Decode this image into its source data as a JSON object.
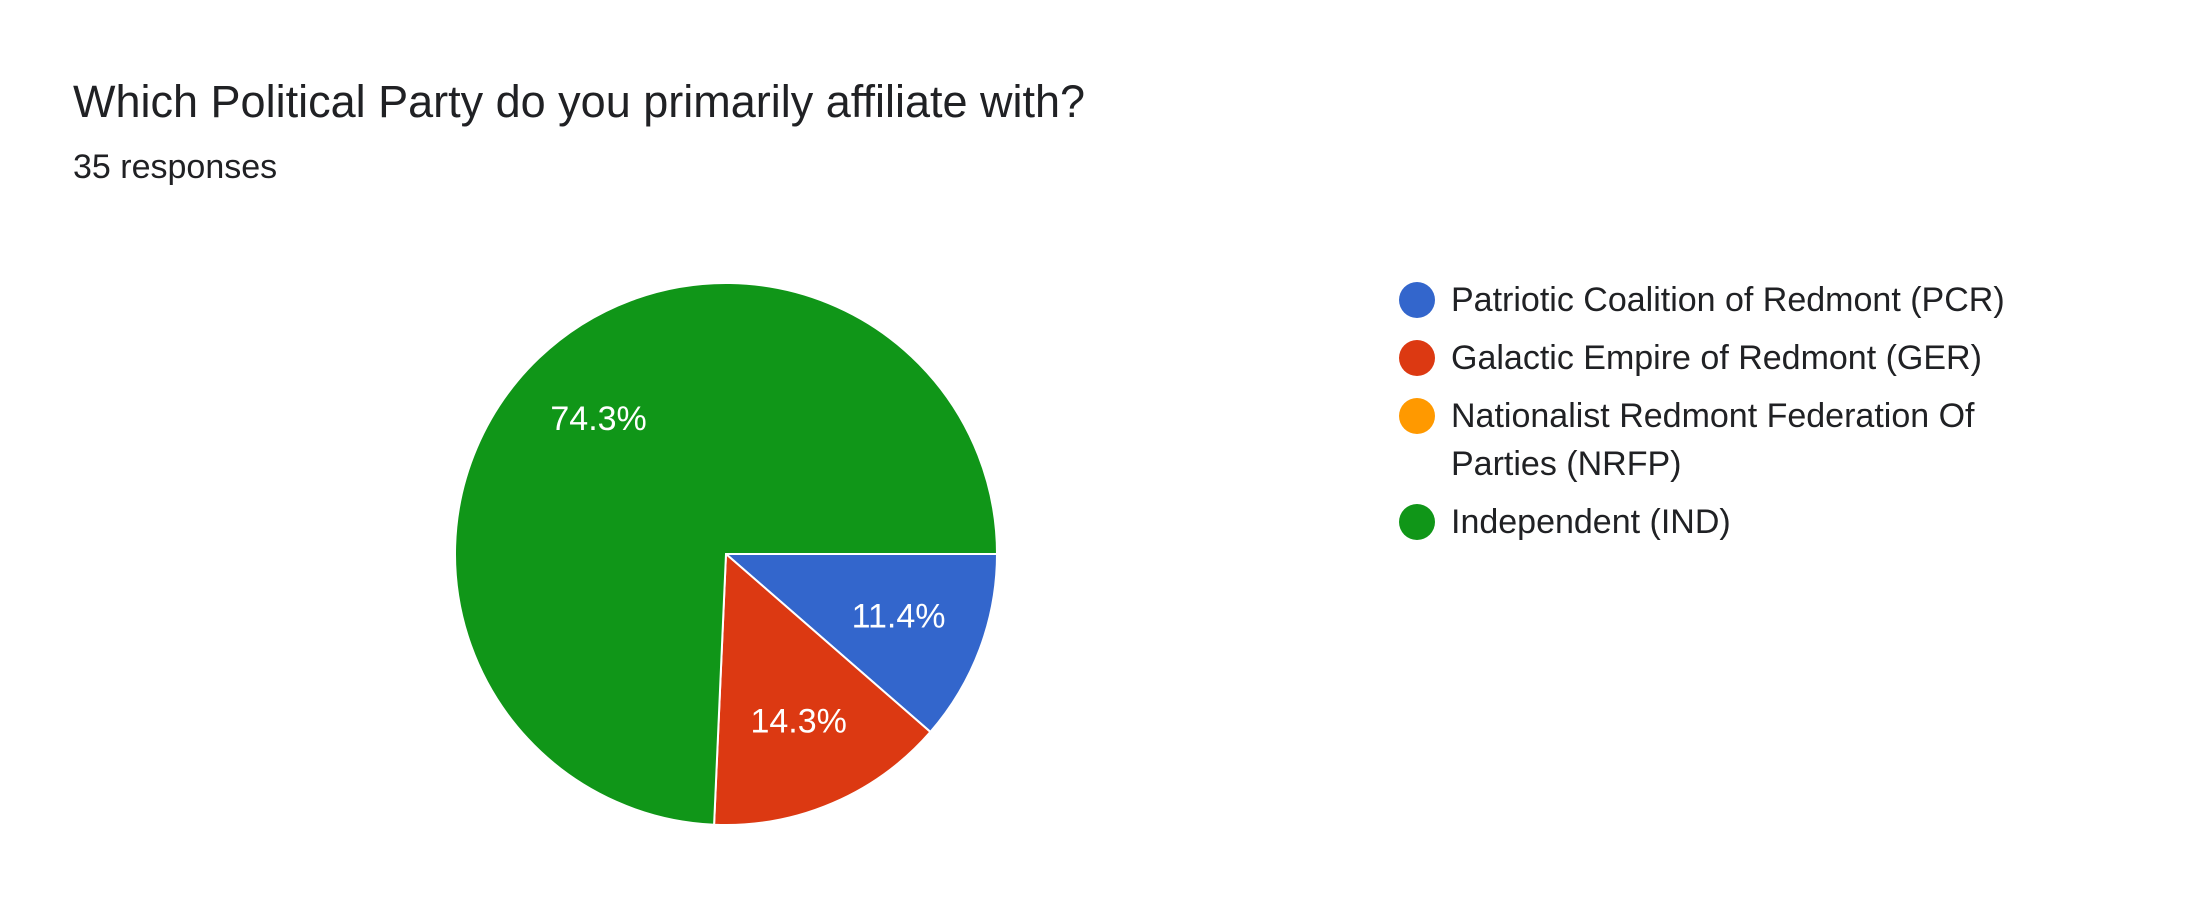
{
  "chart_data": {
    "type": "pie",
    "title": "Which Political Party do you primarily affiliate with?",
    "subtitle": "35 responses",
    "categories": [
      "Patriotic Coalition of Redmont (PCR)",
      "Galactic Empire of Redmont (GER)",
      "Nationalist Redmont Federation Of Parties (NRFP)",
      "Independent (IND)"
    ],
    "values": [
      11.4,
      14.3,
      0,
      74.3
    ],
    "value_labels": [
      "11.4%",
      "14.3%",
      null,
      "74.3%"
    ],
    "colors": [
      "#3366cc",
      "#dc3912",
      "#ff9900",
      "#109618"
    ],
    "legend": "right"
  }
}
